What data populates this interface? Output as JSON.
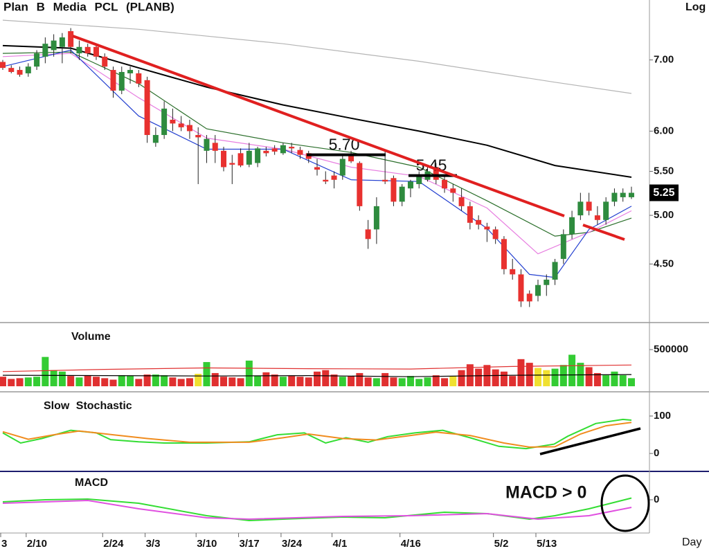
{
  "chart_data": [
    {
      "type": "candlestick",
      "title": "Plan B Media PCL (PLANB)",
      "scale_label": "Log",
      "period_label": "Day",
      "categories": [
        "3",
        null,
        null,
        "2/10",
        null,
        null,
        null,
        null,
        null,
        null,
        null,
        null,
        "2/24",
        null,
        null,
        null,
        null,
        "3/3",
        null,
        null,
        null,
        null,
        null,
        "3/10",
        null,
        null,
        null,
        null,
        "3/17",
        null,
        null,
        null,
        null,
        "3/24",
        null,
        null,
        null,
        null,
        null,
        "4/1",
        null,
        null,
        null,
        null,
        null,
        null,
        null,
        "4/16",
        null,
        null,
        null,
        null,
        null,
        null,
        null,
        null,
        null,
        null,
        "5/2",
        null,
        null,
        null,
        null,
        "5/13",
        null,
        null,
        null,
        null,
        null,
        null,
        null,
        null,
        null,
        null,
        null
      ],
      "open": [
        6.97,
        6.88,
        6.85,
        6.8,
        6.9,
        7.05,
        7.15,
        7.2,
        7.45,
        7.1,
        7.2,
        7.2,
        7.05,
        6.85,
        6.55,
        6.8,
        6.8,
        6.7,
        5.85,
        5.95,
        6.15,
        6.1,
        6.08,
        5.95,
        5.75,
        5.85,
        5.75,
        5.6,
        5.72,
        5.58,
        5.6,
        5.75,
        5.78,
        5.72,
        5.8,
        5.76,
        5.72,
        5.55,
        5.4,
        5.45,
        5.45,
        5.7,
        5.6,
        4.85,
        4.85,
        5.4,
        5.42,
        5.15,
        5.3,
        5.35,
        5.4,
        5.55,
        5.4,
        5.3,
        5.2,
        5.1,
        4.95,
        4.88,
        4.85,
        4.75,
        4.45,
        4.4,
        4.22,
        4.2,
        4.3,
        4.35,
        4.55,
        4.8,
        5.0,
        5.15,
        5.0,
        4.95,
        5.15,
        5.2,
        5.2
      ],
      "high": [
        7.0,
        6.92,
        6.9,
        6.95,
        7.15,
        7.35,
        7.4,
        7.42,
        7.5,
        7.3,
        7.25,
        7.25,
        7.1,
        6.9,
        6.9,
        6.9,
        6.85,
        6.75,
        6.05,
        6.4,
        6.3,
        6.2,
        6.15,
        6.05,
        5.95,
        5.95,
        5.8,
        5.7,
        5.78,
        5.85,
        5.8,
        5.8,
        5.82,
        5.85,
        5.85,
        5.8,
        5.75,
        5.65,
        5.5,
        5.5,
        5.7,
        5.75,
        5.62,
        4.95,
        5.2,
        5.75,
        5.45,
        5.35,
        5.4,
        5.5,
        5.55,
        5.6,
        5.45,
        5.35,
        5.3,
        5.15,
        5.0,
        4.92,
        4.88,
        4.78,
        4.55,
        4.45,
        4.25,
        4.35,
        4.4,
        4.55,
        4.85,
        5.05,
        5.25,
        5.25,
        5.1,
        5.2,
        5.3,
        5.3,
        5.32
      ],
      "low": [
        6.85,
        6.8,
        6.75,
        6.75,
        6.85,
        6.95,
        7.05,
        6.95,
        7.1,
        7.0,
        7.05,
        7.0,
        6.85,
        6.45,
        6.5,
        6.65,
        6.6,
        5.85,
        5.8,
        5.9,
        6.0,
        6.0,
        5.9,
        5.35,
        5.6,
        5.6,
        5.5,
        5.35,
        5.55,
        5.55,
        5.55,
        5.68,
        5.7,
        5.7,
        5.72,
        5.65,
        5.6,
        5.45,
        5.35,
        5.3,
        5.4,
        5.6,
        5.05,
        4.65,
        4.7,
        5.35,
        5.1,
        5.1,
        5.2,
        5.3,
        5.38,
        5.35,
        5.25,
        5.15,
        5.05,
        4.85,
        4.85,
        4.72,
        4.7,
        4.4,
        4.35,
        4.1,
        4.1,
        4.15,
        4.2,
        4.3,
        4.5,
        4.75,
        4.95,
        5.0,
        4.9,
        4.9,
        5.1,
        5.15,
        5.18
      ],
      "close": [
        6.88,
        6.82,
        6.78,
        6.9,
        7.1,
        7.25,
        7.3,
        7.35,
        7.2,
        7.2,
        7.1,
        7.05,
        6.9,
        6.55,
        6.82,
        6.85,
        6.65,
        5.95,
        5.95,
        6.3,
        6.1,
        6.05,
        6.0,
        5.92,
        5.9,
        5.75,
        5.55,
        5.58,
        5.57,
        5.75,
        5.78,
        5.72,
        5.74,
        5.82,
        5.78,
        5.7,
        5.65,
        5.52,
        5.38,
        5.4,
        5.65,
        5.62,
        5.1,
        4.75,
        5.1,
        5.38,
        5.15,
        5.32,
        5.38,
        5.45,
        5.5,
        5.4,
        5.3,
        5.25,
        5.1,
        4.92,
        4.9,
        4.85,
        4.75,
        4.45,
        4.4,
        4.15,
        4.15,
        4.3,
        4.35,
        4.52,
        4.8,
        4.98,
        5.15,
        5.05,
        4.95,
        5.15,
        5.25,
        5.25,
        5.25
      ],
      "up_color": "#2e8b3e",
      "down_color": "#e8312f",
      "log": true,
      "ylim": [
        3.97,
        7.97
      ],
      "yticks": [
        {
          "value": 4.5,
          "label": "4.50"
        },
        {
          "value": 5,
          "label": "5.00"
        },
        {
          "value": 5.5,
          "label": "5.50"
        },
        {
          "value": 6,
          "label": "6.00"
        },
        {
          "value": 7,
          "label": "7.00"
        }
      ],
      "overlays": [
        {
          "color": "#b4b4b4",
          "x": [
            0,
            16,
            33,
            49,
            65,
            74
          ],
          "values": [
            7.63,
            7.48,
            7.25,
            6.98,
            6.67,
            6.51
          ]
        },
        {
          "color": "#000000",
          "x": [
            0,
            8,
            16,
            24,
            33,
            41,
            49,
            57,
            65,
            74
          ],
          "values": [
            7.22,
            7.18,
            6.88,
            6.6,
            6.35,
            6.17,
            6.0,
            5.82,
            5.57,
            5.43
          ]
        },
        {
          "color": "#2a6e2a",
          "x": [
            0,
            8,
            16,
            24,
            33,
            41,
            49,
            57,
            65,
            69,
            74
          ],
          "values": [
            7.1,
            7.12,
            6.65,
            6.03,
            5.85,
            5.73,
            5.55,
            5.16,
            4.78,
            4.82,
            4.97
          ]
        },
        {
          "color": "#e77ee0",
          "x": [
            0,
            8,
            16,
            24,
            33,
            41,
            49,
            57,
            63,
            69,
            74
          ],
          "values": [
            7.05,
            7.1,
            6.45,
            5.91,
            5.77,
            5.55,
            5.44,
            5.08,
            4.6,
            4.82,
            5.05
          ]
        },
        {
          "color": "#2440d0",
          "x": [
            0,
            8,
            16,
            24,
            33,
            41,
            49,
            57,
            62,
            65,
            69,
            74
          ],
          "values": [
            6.9,
            7.15,
            6.2,
            5.77,
            5.77,
            5.4,
            5.38,
            4.86,
            4.4,
            4.37,
            4.85,
            5.1
          ]
        }
      ],
      "levels": [
        {
          "value": 5.7,
          "label": "5.70"
        },
        {
          "value": 5.45,
          "label": "5.45"
        }
      ],
      "last_price": {
        "value": 5.25,
        "label": "5.25"
      }
    },
    {
      "type": "bar",
      "title": "Volume",
      "values": [
        130000,
        100000,
        110000,
        120000,
        130000,
        400000,
        220000,
        200000,
        140000,
        120000,
        150000,
        130000,
        110000,
        90000,
        150000,
        140000,
        100000,
        160000,
        160000,
        150000,
        120000,
        100000,
        110000,
        170000,
        330000,
        180000,
        130000,
        120000,
        110000,
        350000,
        140000,
        190000,
        160000,
        130000,
        140000,
        130000,
        120000,
        200000,
        220000,
        160000,
        130000,
        140000,
        180000,
        120000,
        110000,
        180000,
        120000,
        110000,
        140000,
        100000,
        120000,
        150000,
        110000,
        140000,
        220000,
        300000,
        240000,
        290000,
        230000,
        200000,
        140000,
        370000,
        320000,
        250000,
        220000,
        240000,
        290000,
        430000,
        320000,
        260000,
        180000,
        150000,
        200000,
        150000,
        110000
      ],
      "colors": [
        "#e03030",
        "#e03030",
        "#e03030",
        "#33cc33",
        "#33cc33",
        "#33cc33",
        "#33cc33",
        "#33cc33",
        "#e03030",
        "#33cc33",
        "#e03030",
        "#e03030",
        "#e03030",
        "#e03030",
        "#33cc33",
        "#33cc33",
        "#e03030",
        "#e03030",
        "#33cc33",
        "#33cc33",
        "#e03030",
        "#e03030",
        "#e03030",
        "#f0e030",
        "#33cc33",
        "#e03030",
        "#e03030",
        "#e03030",
        "#e03030",
        "#33cc33",
        "#33cc33",
        "#e03030",
        "#e03030",
        "#33cc33",
        "#e03030",
        "#e03030",
        "#e03030",
        "#e03030",
        "#e03030",
        "#e03030",
        "#33cc33",
        "#e03030",
        "#e03030",
        "#e03030",
        "#33cc33",
        "#e03030",
        "#e03030",
        "#33cc33",
        "#33cc33",
        "#33cc33",
        "#33cc33",
        "#e03030",
        "#e03030",
        "#f0e030",
        "#e03030",
        "#e03030",
        "#e03030",
        "#e03030",
        "#e03030",
        "#e03030",
        "#e03030",
        "#e03030",
        "#e03030",
        "#f0e030",
        "#f0e030",
        "#33cc33",
        "#33cc33",
        "#33cc33",
        "#33cc33",
        "#e03030",
        "#e03030",
        "#33cc33",
        "#33cc33",
        "#33cc33",
        "#33cc33"
      ],
      "ylim": [
        0,
        850000
      ],
      "yticks": [
        500000
      ],
      "overlays": [
        {
          "color": "#e03030",
          "x": [
            0,
            12,
            24,
            36,
            48,
            60,
            74
          ],
          "values": [
            200000,
            230000,
            250000,
            240000,
            235000,
            270000,
            290000
          ]
        },
        {
          "color": "#000000",
          "x": [
            0,
            12,
            24,
            36,
            48,
            60,
            74
          ],
          "values": [
            150000,
            145000,
            140000,
            145000,
            130000,
            150000,
            160000
          ]
        }
      ]
    },
    {
      "type": "line",
      "title": "Slow Stochastic",
      "ylim": [
        -46,
        161
      ],
      "yticks": [
        100,
        0
      ],
      "series": [
        {
          "color": "#33dd33",
          "x": [
            0,
            2.1,
            4.6,
            8,
            11,
            12.7,
            16,
            19,
            24,
            29,
            32.3,
            35.5,
            38,
            40.4,
            43,
            45.3,
            48.5,
            51.8,
            55,
            58.4,
            61.6,
            64.9,
            66.5,
            69.8,
            73,
            74
          ],
          "values": [
            55,
            28,
            40,
            62,
            55,
            37,
            31,
            28,
            28,
            31,
            50,
            55,
            28,
            42,
            30,
            45,
            55,
            62,
            42,
            19,
            13,
            25,
            46,
            80,
            91,
            89
          ]
        },
        {
          "color": "#f08c1e",
          "x": [
            0,
            3,
            6,
            9,
            13,
            17,
            22,
            29,
            33,
            36,
            40,
            44,
            48,
            51,
            55,
            59,
            62,
            65,
            68,
            71,
            74
          ],
          "values": [
            58,
            38,
            50,
            60,
            50,
            40,
            30,
            30,
            42,
            52,
            40,
            36,
            48,
            57,
            48,
            28,
            17,
            18,
            52,
            74,
            83
          ]
        }
      ]
    },
    {
      "type": "line",
      "title": "MACD",
      "annotation": "MACD > 0",
      "ylim": [
        -0.192,
        0.156
      ],
      "yticks": [
        0
      ],
      "series": [
        {
          "color": "#33dd33",
          "x": [
            0,
            5,
            10,
            16,
            24,
            29,
            34,
            40,
            45,
            52,
            57,
            62,
            65,
            69,
            74
          ],
          "values": [
            -0.012,
            0.0,
            0.004,
            -0.02,
            -0.092,
            -0.12,
            -0.11,
            -0.1,
            -0.104,
            -0.072,
            -0.08,
            -0.112,
            -0.092,
            -0.052,
            0.01
          ]
        },
        {
          "color": "#e050e0",
          "x": [
            0,
            10,
            16,
            24,
            29,
            40,
            48,
            57,
            63,
            69,
            74
          ],
          "values": [
            -0.02,
            -0.004,
            -0.052,
            -0.104,
            -0.112,
            -0.096,
            -0.092,
            -0.08,
            -0.112,
            -0.092,
            -0.044
          ]
        }
      ]
    }
  ]
}
